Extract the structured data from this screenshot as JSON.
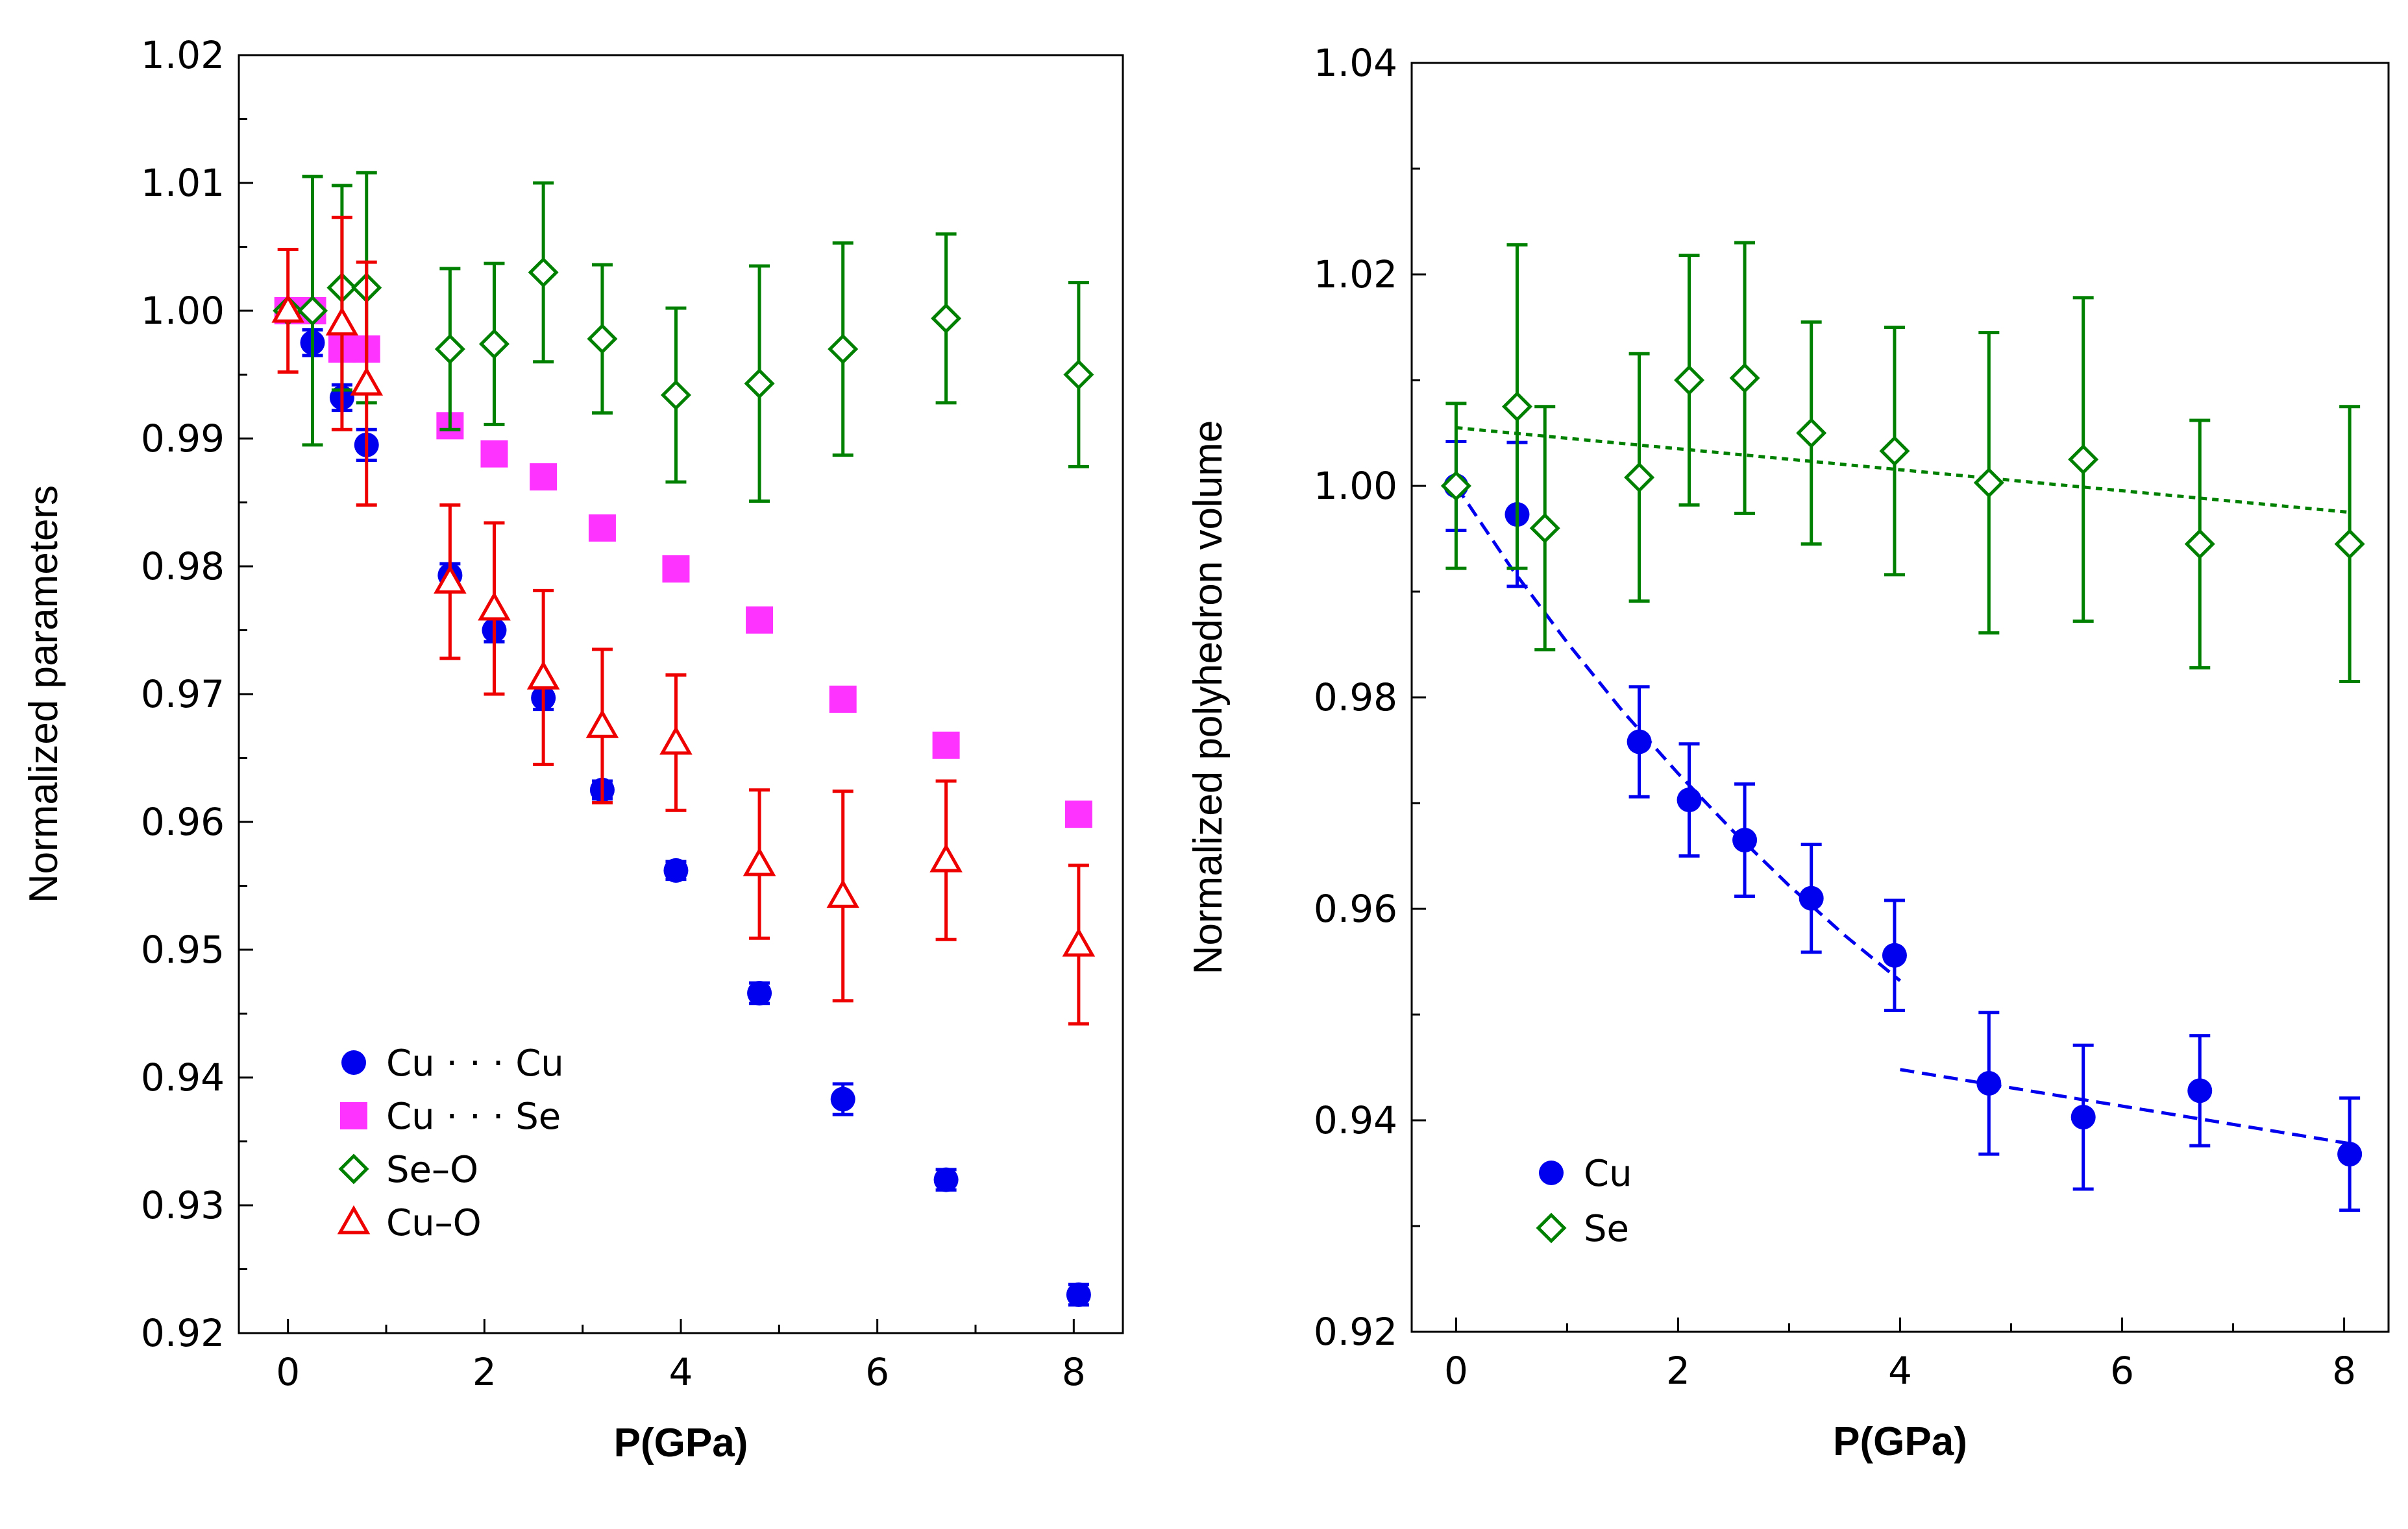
{
  "chart_data": [
    {
      "type": "scatter",
      "title": "",
      "xlabel": "P(GPa)",
      "ylabel": "Normalized parameters",
      "xlim": [
        -0.5,
        8.5
      ],
      "ylim": [
        0.92,
        1.02
      ],
      "x_ticks": [
        0,
        2,
        4,
        6,
        8
      ],
      "x_tick_labels": [
        "0",
        "2",
        "4",
        "6",
        "8"
      ],
      "y_ticks": [
        0.92,
        0.93,
        0.94,
        0.95,
        0.96,
        0.97,
        0.98,
        0.99,
        1.0,
        1.01,
        1.02
      ],
      "y_tick_labels": [
        "0.92",
        "0.93",
        "0.94",
        "0.95",
        "0.96",
        "0.97",
        "0.98",
        "0.99",
        "1.00",
        "1.01",
        "1.02"
      ],
      "grid": false,
      "legend_position": "bottom-left",
      "series": [
        {
          "name": "Cu···Cu",
          "label": "Cu · · · Cu",
          "color": "#0000ee",
          "marker": "filled-circle",
          "x": [
            0,
            0.25,
            0.55,
            0.8,
            1.65,
            2.1,
            2.6,
            3.2,
            3.95,
            4.8,
            5.65,
            6.7,
            8.05
          ],
          "y": [
            1.0,
            0.9975,
            0.9932,
            0.9895,
            0.9793,
            0.975,
            0.9697,
            0.9625,
            0.9562,
            0.9466,
            0.9383,
            0.932,
            0.923
          ],
          "yerr": [
            0.0008,
            0.001,
            0.001,
            0.0012,
            0.0009,
            0.0009,
            0.0009,
            0.0007,
            0.0007,
            0.0008,
            0.0012,
            0.0008,
            0.0008
          ]
        },
        {
          "name": "Cu···Se",
          "label": "Cu · · · Se",
          "color": "#ff33ff",
          "marker": "filled-square",
          "x": [
            0,
            0.25,
            0.55,
            0.8,
            1.65,
            2.1,
            2.6,
            3.2,
            3.95,
            4.8,
            5.65,
            6.7,
            8.05
          ],
          "y": [
            1.0,
            1.0,
            0.997,
            0.997,
            0.991,
            0.9888,
            0.987,
            0.983,
            0.9798,
            0.9758,
            0.9696,
            0.966,
            0.9606
          ],
          "yerr": []
        },
        {
          "name": "Se-O",
          "label": "Se–O",
          "color": "#008000",
          "marker": "open-diamond",
          "x": [
            0,
            0.25,
            0.55,
            0.8,
            1.65,
            2.1,
            2.6,
            3.2,
            3.95,
            4.8,
            5.65,
            6.7,
            8.05
          ],
          "y": [
            1.0,
            1.0,
            1.0018,
            1.0018,
            0.997,
            0.9974,
            1.003,
            0.9978,
            0.9934,
            0.9943,
            0.997,
            0.9994,
            0.995
          ],
          "yerr": [
            0.0,
            0.0105,
            0.008,
            0.009,
            0.0063,
            0.0063,
            0.007,
            0.0058,
            0.0068,
            0.0092,
            0.0083,
            0.0066,
            0.0072
          ]
        },
        {
          "name": "Cu-O",
          "label": "Cu–O",
          "color": "#ee0000",
          "marker": "open-triangle",
          "x": [
            0,
            0.55,
            0.8,
            1.65,
            2.1,
            2.6,
            3.2,
            3.95,
            4.8,
            5.65,
            6.7,
            8.05
          ],
          "y": [
            1.0,
            0.999,
            0.9943,
            0.9788,
            0.9767,
            0.9713,
            0.9675,
            0.9662,
            0.9567,
            0.9542,
            0.957,
            0.9504
          ],
          "yerr": [
            0.0048,
            0.0083,
            0.0095,
            0.006,
            0.0067,
            0.0068,
            0.006,
            0.0053,
            0.0058,
            0.0082,
            0.0062,
            0.0062
          ]
        }
      ]
    },
    {
      "type": "scatter",
      "title": "",
      "xlabel": "P(GPa)",
      "ylabel": "Normalized polyhedron volume",
      "xlim": [
        -0.4,
        8.4
      ],
      "ylim": [
        0.92,
        1.04
      ],
      "x_ticks": [
        0,
        2,
        4,
        6,
        8
      ],
      "x_tick_labels": [
        "0",
        "2",
        "4",
        "6",
        "8"
      ],
      "y_ticks": [
        0.92,
        0.94,
        0.96,
        0.98,
        1.0,
        1.02,
        1.04
      ],
      "y_tick_labels": [
        "0.92",
        "0.94",
        "0.96",
        "0.98",
        "1.00",
        "1.02",
        "1.04"
      ],
      "grid": false,
      "legend_position": "bottom-left",
      "series": [
        {
          "name": "Cu",
          "label": "Cu",
          "color": "#0000ee",
          "marker": "filled-circle",
          "x": [
            0,
            0.55,
            1.65,
            2.1,
            2.6,
            3.2,
            3.95,
            4.8,
            5.65,
            6.7,
            8.05
          ],
          "y": [
            1.0,
            0.9973,
            0.9758,
            0.9703,
            0.9665,
            0.961,
            0.9556,
            0.9435,
            0.9403,
            0.9428,
            0.9368
          ],
          "yerr": [
            0.0042,
            0.0068,
            0.0052,
            0.0053,
            0.0053,
            0.0051,
            0.0052,
            0.0067,
            0.0068,
            0.0052,
            0.0053
          ]
        },
        {
          "name": "Se",
          "label": "Se",
          "color": "#008000",
          "marker": "open-diamond",
          "x": [
            0,
            0.55,
            0.8,
            1.65,
            2.1,
            2.6,
            3.2,
            3.95,
            4.8,
            5.65,
            6.7,
            8.05
          ],
          "y": [
            1.0,
            1.0075,
            0.996,
            1.0008,
            1.01,
            1.0102,
            1.005,
            1.0033,
            1.0003,
            1.0025,
            0.9945,
            0.9945
          ],
          "yerr": [
            0.0078,
            0.0153,
            0.0115,
            0.0117,
            0.0118,
            0.0128,
            0.0105,
            0.0117,
            0.0142,
            0.0153,
            0.0117,
            0.013
          ]
        }
      ],
      "fits": [
        {
          "name": "Cu fit (low P)",
          "color": "#0000ee",
          "style": "dashed",
          "x": [
            0,
            0.5,
            1.0,
            1.5,
            2.0,
            2.5,
            3.0,
            3.5,
            4.0
          ],
          "y": [
            1.0,
            0.9922,
            0.9852,
            0.9787,
            0.9728,
            0.9673,
            0.9622,
            0.9575,
            0.9532
          ]
        },
        {
          "name": "Cu fit (high P)",
          "color": "#0000ee",
          "style": "dashed",
          "x": [
            4.0,
            8.05
          ],
          "y": [
            0.9448,
            0.9378
          ]
        },
        {
          "name": "Se fit",
          "color": "#008000",
          "style": "dotted",
          "x": [
            0,
            8.05
          ],
          "y": [
            1.0055,
            0.9975
          ]
        }
      ]
    }
  ]
}
